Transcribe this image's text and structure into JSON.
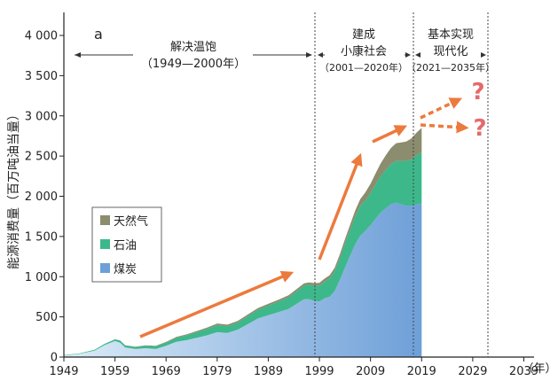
{
  "chart_data": {
    "type": "area",
    "panel_label": "a",
    "ylabel": "能源消费量（百万吨油当量）",
    "xunit": "（年）",
    "xlim": [
      1949,
      2041
    ],
    "ylim": [
      0,
      4200
    ],
    "x_ticks": [
      "1949",
      "1959",
      "1969",
      "1979",
      "1989",
      "1999",
      "2009",
      "2019",
      "2029",
      "2039"
    ],
    "y_ticks": [
      "0",
      "500",
      "1 000",
      "1 500",
      "2 000",
      "2 500",
      "3 000",
      "3 500",
      "4 000"
    ],
    "x": [
      1949,
      1952,
      1955,
      1957,
      1959,
      1960,
      1961,
      1963,
      1965,
      1967,
      1969,
      1971,
      1973,
      1975,
      1977,
      1979,
      1981,
      1983,
      1985,
      1987,
      1989,
      1991,
      1993,
      1995,
      1996,
      1997,
      1998,
      1999,
      2000,
      2001,
      2002,
      2003,
      2004,
      2005,
      2006,
      2007,
      2008,
      2009,
      2010,
      2011,
      2012,
      2013,
      2014,
      2015,
      2016,
      2017,
      2018,
      2019
    ],
    "series": [
      {
        "name": "煤炭",
        "color": "#6e9fd8",
        "values": [
          20,
          40,
          80,
          150,
          200,
          180,
          120,
          100,
          110,
          100,
          140,
          190,
          210,
          240,
          270,
          310,
          300,
          340,
          410,
          480,
          520,
          560,
          600,
          680,
          720,
          720,
          700,
          690,
          730,
          750,
          820,
          960,
          1110,
          1260,
          1400,
          1510,
          1570,
          1640,
          1720,
          1800,
          1850,
          1900,
          1920,
          1900,
          1880,
          1880,
          1900,
          1910
        ]
      },
      {
        "name": "石油",
        "color": "#3db88b",
        "values": [
          5,
          5,
          10,
          15,
          20,
          25,
          25,
          25,
          30,
          35,
          40,
          50,
          60,
          70,
          80,
          90,
          85,
          90,
          100,
          110,
          120,
          130,
          145,
          160,
          170,
          180,
          190,
          200,
          210,
          230,
          250,
          270,
          300,
          320,
          350,
          370,
          380,
          400,
          430,
          450,
          480,
          500,
          520,
          540,
          560,
          580,
          610,
          640
        ]
      },
      {
        "name": "天然气",
        "color": "#8c8c6e",
        "values": [
          0,
          0,
          0,
          0,
          2,
          3,
          3,
          4,
          5,
          6,
          8,
          10,
          12,
          14,
          16,
          18,
          18,
          19,
          20,
          21,
          22,
          23,
          25,
          27,
          28,
          29,
          30,
          32,
          35,
          38,
          42,
          48,
          55,
          63,
          73,
          85,
          100,
          115,
          135,
          160,
          180,
          200,
          220,
          230,
          240,
          260,
          280,
          300
        ]
      }
    ],
    "periods": [
      {
        "title": "解决温饱",
        "range": "（1949—2000年）",
        "start": 1949,
        "end": 1999
      },
      {
        "title": "建成",
        "title2": "小康社会",
        "range": "（2001—2020年）",
        "start": 1999,
        "end": 2020
      },
      {
        "title": "基本实现",
        "title2": "现代化",
        "range": "（2021—2035年）",
        "start": 2020,
        "end": 2035
      }
    ],
    "period_dividers": [
      1999,
      2020,
      2035
    ],
    "legend_position": "center-left",
    "annotations": [
      "?",
      "?"
    ]
  }
}
